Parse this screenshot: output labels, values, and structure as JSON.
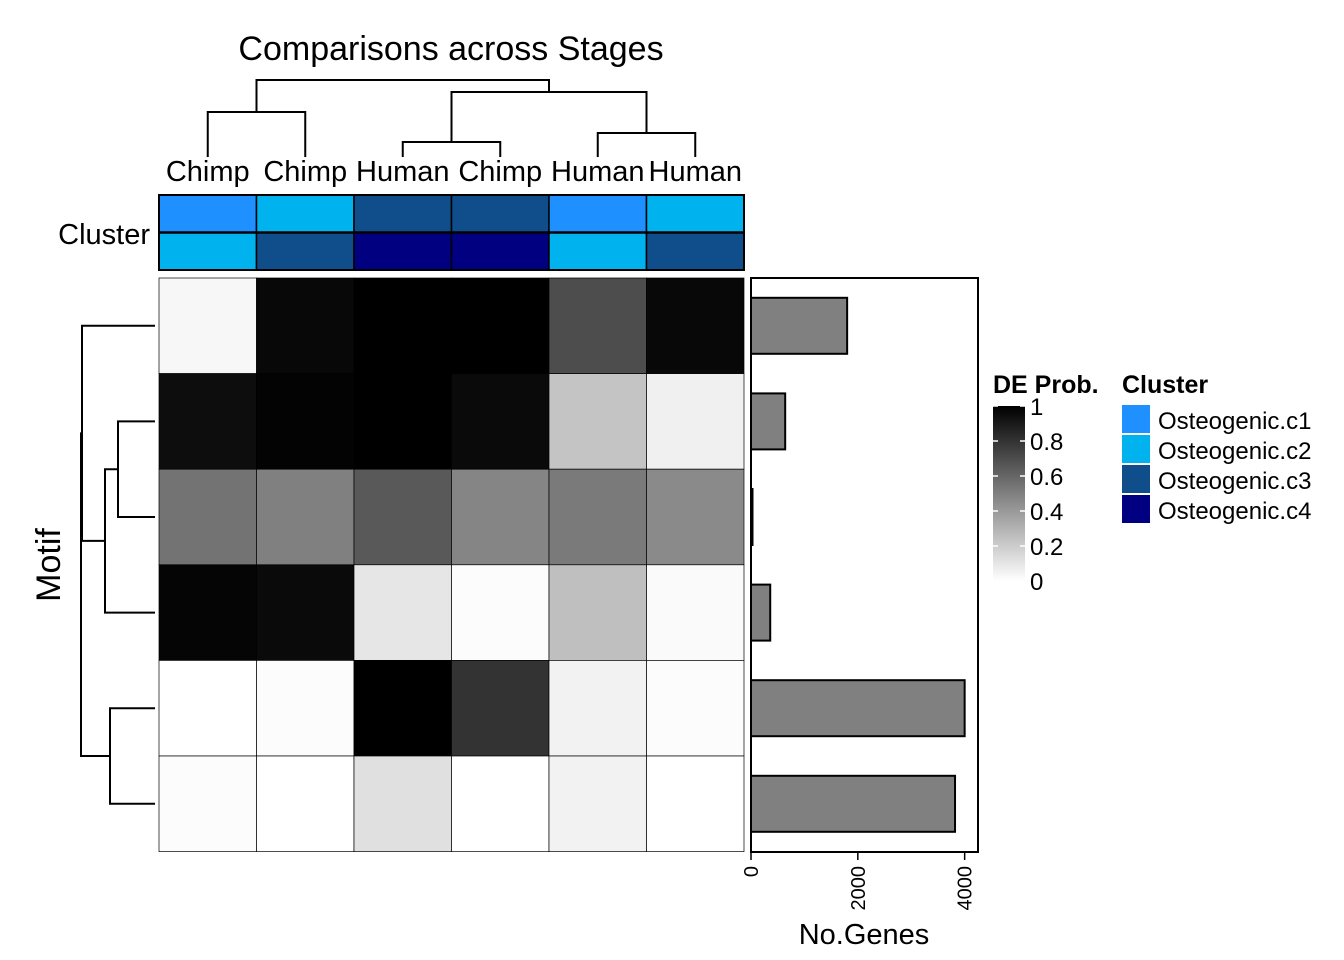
{
  "chart_data": {
    "type": "heatmap",
    "title": "Comparisons across Stages",
    "columns": [
      "Chimp",
      "Chimp",
      "Human",
      "Chimp",
      "Human",
      "Human"
    ],
    "row_label": "Motif",
    "annotation_label": "Cluster",
    "cluster_annotation": [
      [
        "Osteogenic.c1",
        "Osteogenic.c2",
        "Osteogenic.c3",
        "Osteogenic.c3",
        "Osteogenic.c1",
        "Osteogenic.c2"
      ],
      [
        "Osteogenic.c2",
        "Osteogenic.c3",
        "Osteogenic.c4",
        "Osteogenic.c4",
        "Osteogenic.c2",
        "Osteogenic.c3"
      ]
    ],
    "values": [
      [
        0.03,
        0.97,
        1.0,
        1.0,
        0.7,
        0.97
      ],
      [
        0.95,
        0.99,
        1.0,
        0.96,
        0.23,
        0.06
      ],
      [
        0.55,
        0.5,
        0.65,
        0.48,
        0.52,
        0.46
      ],
      [
        0.98,
        0.96,
        0.1,
        0.01,
        0.25,
        0.02
      ],
      [
        0.0,
        0.01,
        1.0,
        0.8,
        0.05,
        0.01
      ],
      [
        0.01,
        0.0,
        0.12,
        0.0,
        0.05,
        0.0
      ]
    ],
    "bar_chart": {
      "xlabel": "No.Genes",
      "ticks": [
        0,
        2000,
        4000
      ],
      "xlim": [
        0,
        4250
      ],
      "values": [
        1800,
        640,
        10,
        360,
        4000,
        3820
      ],
      "bar_color": "#808080"
    },
    "legend_de": {
      "title": "DE Prob.",
      "ticks": [
        "1",
        "0.8",
        "0.6",
        "0.4",
        "0.2",
        "0"
      ],
      "scale": [
        0,
        1
      ]
    },
    "legend_cluster": {
      "title": "Cluster",
      "items": [
        {
          "label": "Osteogenic.c1",
          "color": "#1E90FF"
        },
        {
          "label": "Osteogenic.c2",
          "color": "#00B2EE"
        },
        {
          "label": "Osteogenic.c3",
          "color": "#104E8B"
        },
        {
          "label": "Osteogenic.c4",
          "color": "#000080"
        }
      ]
    }
  }
}
